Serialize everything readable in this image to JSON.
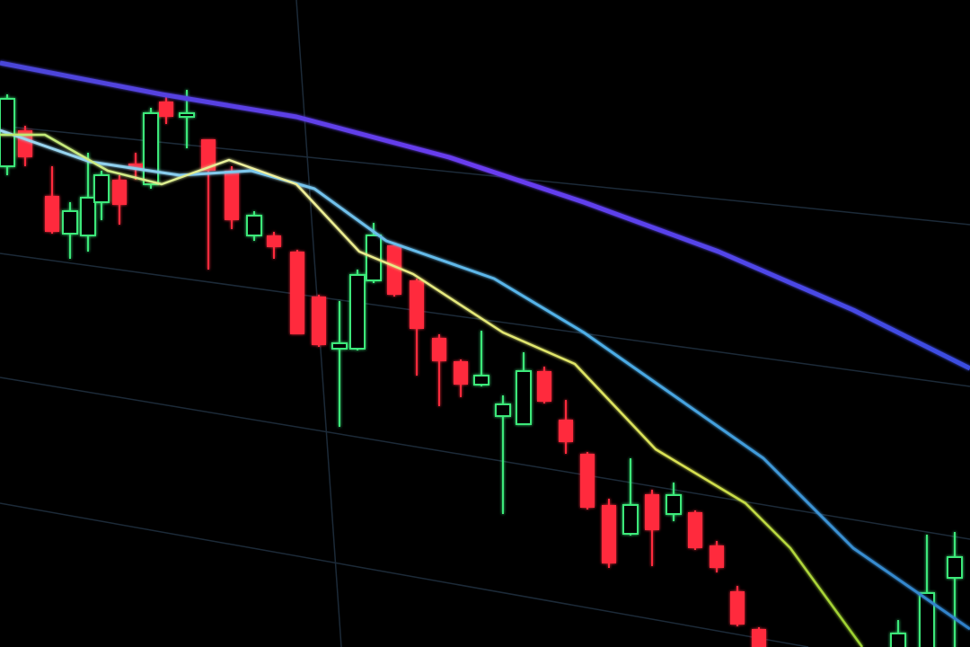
{
  "scene": {
    "subject": "candlestick-chart-on-screen",
    "colors": {
      "background": "#000000",
      "bullish_candle": "#3ee87a",
      "bearish_candle": "#ff2a3c",
      "moving_average_slow": "#5a3cf0",
      "moving_average_mid": "#6fc8f0",
      "moving_average_fast": "#e8e890",
      "grid": "#1c2a38"
    }
  }
}
